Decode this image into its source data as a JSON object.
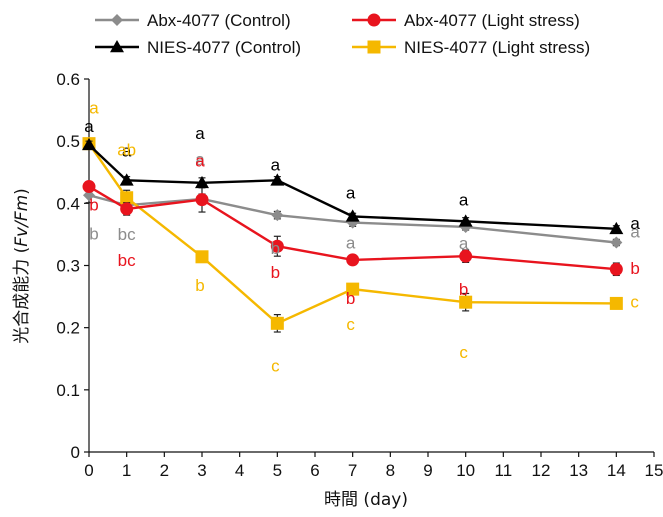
{
  "chart_data": {
    "type": "line",
    "title": "",
    "xlabel": "時間 (day)",
    "ylabel_prefix": "光合成能力 (",
    "ylabel_italic": "Fv/Fm",
    "ylabel_suffix": ")",
    "xlim": [
      0,
      15
    ],
    "ylim": [
      0,
      0.6
    ],
    "xticks": [
      "0",
      "1",
      "2",
      "3",
      "4",
      "5",
      "6",
      "7",
      "8",
      "9",
      "10",
      "11",
      "12",
      "13",
      "14",
      "15"
    ],
    "yticks": [
      "0",
      "0.1",
      "0.2",
      "0.3",
      "0.4",
      "0.5",
      "0.6"
    ],
    "grid": false,
    "legend_position": "top",
    "x": [
      0,
      1,
      3,
      5,
      7,
      10,
      14
    ],
    "series": [
      {
        "name": "Abx-4077 (Control)",
        "color": "#8c8c8c",
        "marker": "diamond",
        "values": [
          0.413,
          0.397,
          0.407,
          0.381,
          0.369,
          0.362,
          0.337
        ],
        "errors": [
          0.012,
          0.01,
          0.008,
          0.006,
          0.006,
          0.005,
          0.005
        ],
        "letters": [
          "b",
          "bc",
          "a",
          "b",
          "a",
          "a",
          "a"
        ]
      },
      {
        "name": "NIES-4077 (Control)",
        "color": "#000000",
        "marker": "triangle",
        "values": [
          0.494,
          0.437,
          0.433,
          0.437,
          0.379,
          0.371,
          0.359
        ],
        "errors": [
          0.006,
          0.006,
          0.008,
          0.006,
          0.005,
          0.006,
          0.005
        ],
        "letters": [
          "a",
          "a",
          "a",
          "a",
          "a",
          "a",
          "a"
        ]
      },
      {
        "name": "Abx-4077 (Light stress)",
        "color": "#e8141e",
        "marker": "circle",
        "values": [
          0.427,
          0.391,
          0.406,
          0.331,
          0.309,
          0.315,
          0.294
        ],
        "errors": [
          0.008,
          0.01,
          0.02,
          0.016,
          0.006,
          0.01,
          0.01
        ],
        "letters": [
          "b",
          "bc",
          "a",
          "b",
          "b",
          "b",
          "b"
        ]
      },
      {
        "name": "NIES-4077 (Light stress)",
        "color": "#f5b800",
        "marker": "square",
        "values": [
          0.496,
          0.409,
          0.314,
          0.207,
          0.262,
          0.241,
          0.239
        ],
        "errors": [
          0.008,
          0.012,
          0.006,
          0.014,
          0.006,
          0.014,
          0.006
        ],
        "letters": [
          "a",
          "ab",
          "b",
          "c",
          "c",
          "c",
          "c"
        ]
      }
    ]
  }
}
